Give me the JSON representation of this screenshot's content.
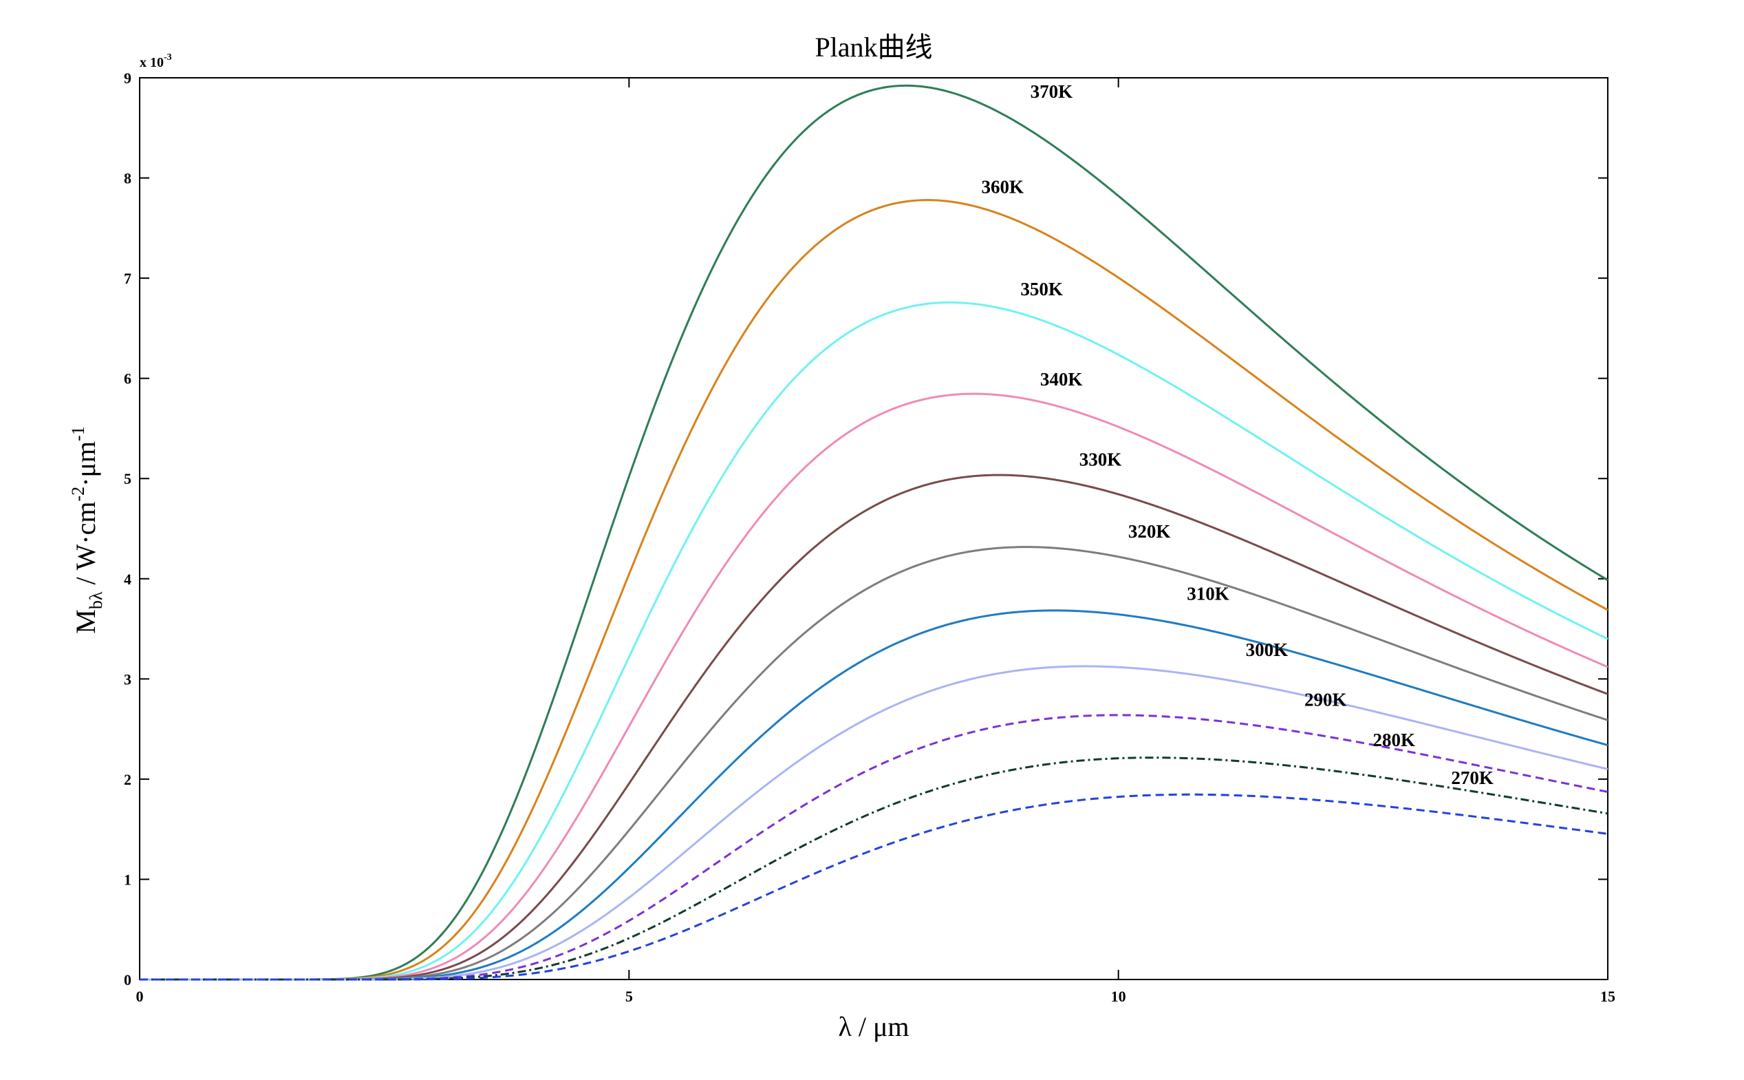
{
  "chart_data": {
    "type": "line",
    "title": "Plank曲线",
    "xlabel": "λ / μm",
    "ylabel_main": "M",
    "ylabel_sub": "bλ",
    "ylabel_units": " / W·cm",
    "ylabel_exp1": "-2",
    "ylabel_mid": "·μm",
    "ylabel_exp2": "-1",
    "y_multiplier_base": "x 10",
    "y_multiplier_exp": "-3",
    "xlim": [
      0,
      15
    ],
    "ylim": [
      0,
      9
    ],
    "y_scale_factor": 0.001,
    "x_ticks": [
      "0",
      "5",
      "10",
      "15"
    ],
    "y_ticks": [
      "0",
      "1",
      "2",
      "3",
      "4",
      "5",
      "6",
      "7",
      "8",
      "9"
    ],
    "grid": false,
    "legend": "none",
    "series": [
      {
        "name": "370K",
        "temperature": 370,
        "color": "#2e7d55",
        "dash": "solid",
        "label_at": [
          9.1,
          8.8
        ]
      },
      {
        "name": "360K",
        "temperature": 360,
        "color": "#d9821c",
        "dash": "solid",
        "label_at": [
          8.6,
          7.85
        ]
      },
      {
        "name": "350K",
        "temperature": 350,
        "color": "#70f2f2",
        "dash": "solid",
        "label_at": [
          9.0,
          6.83
        ]
      },
      {
        "name": "340K",
        "temperature": 340,
        "color": "#f08ab8",
        "dash": "solid",
        "label_at": [
          9.2,
          5.93
        ]
      },
      {
        "name": "330K",
        "temperature": 330,
        "color": "#7a4a4a",
        "dash": "solid",
        "label_at": [
          9.6,
          5.13
        ]
      },
      {
        "name": "320K",
        "temperature": 320,
        "color": "#7d7d7d",
        "dash": "solid",
        "label_at": [
          10.1,
          4.41
        ]
      },
      {
        "name": "310K",
        "temperature": 310,
        "color": "#1f7bc1",
        "dash": "solid",
        "label_at": [
          10.7,
          3.79
        ]
      },
      {
        "name": "300K",
        "temperature": 300,
        "color": "#aab4f5",
        "dash": "solid",
        "label_at": [
          11.3,
          3.23
        ]
      },
      {
        "name": "290K",
        "temperature": 290,
        "color": "#7a32d4",
        "dash": "dashed",
        "label_at": [
          11.9,
          2.73
        ]
      },
      {
        "name": "280K",
        "temperature": 280,
        "color": "#123a2a",
        "dash": "dashdot",
        "label_at": [
          12.6,
          2.33
        ]
      },
      {
        "name": "270K",
        "temperature": 270,
        "color": "#2342e0",
        "dash": "dashed",
        "label_at": [
          13.4,
          1.95
        ]
      }
    ]
  }
}
